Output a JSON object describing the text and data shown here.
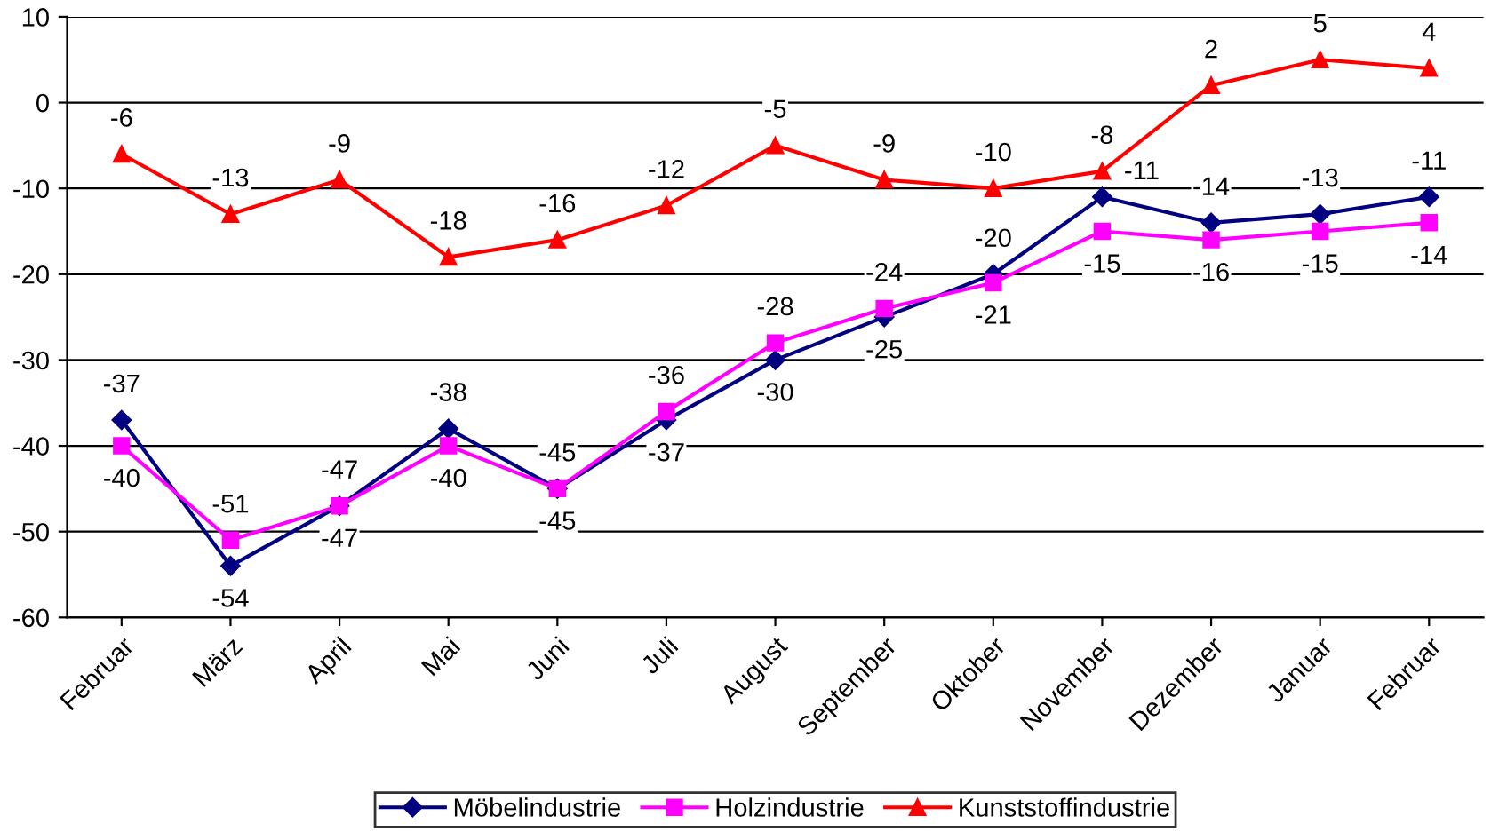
{
  "chart_data": {
    "type": "line",
    "categories": [
      "Februar",
      "März",
      "April",
      "Mai",
      "Juni",
      "Juli",
      "August",
      "September",
      "Oktober",
      "November",
      "Dezember",
      "Januar",
      "Februar"
    ],
    "series": [
      {
        "name": "Möbelindustrie",
        "color": "#000080",
        "marker": "diamond",
        "values": [
          -37,
          -54,
          -47,
          -38,
          -45,
          -37,
          -30,
          -25,
          -20,
          -11,
          -14,
          -13,
          -11
        ]
      },
      {
        "name": "Holzindustrie",
        "color": "#ff00ff",
        "marker": "square",
        "values": [
          -40,
          -51,
          -47,
          -40,
          -45,
          -36,
          -28,
          -24,
          -21,
          -15,
          -16,
          -15,
          -14
        ]
      },
      {
        "name": "Kunststoffindustrie",
        "color": "#ff0000",
        "marker": "triangle",
        "values": [
          -6,
          -13,
          -9,
          -18,
          -16,
          -12,
          -5,
          -9,
          -10,
          -8,
          2,
          5,
          4
        ]
      }
    ],
    "ylim": [
      -60,
      10
    ],
    "yticks": [
      -60,
      -50,
      -40,
      -30,
      -20,
      -10,
      0,
      10
    ],
    "grid": "y",
    "legend": "bottom",
    "data_labels": true,
    "line_style": "solid"
  }
}
